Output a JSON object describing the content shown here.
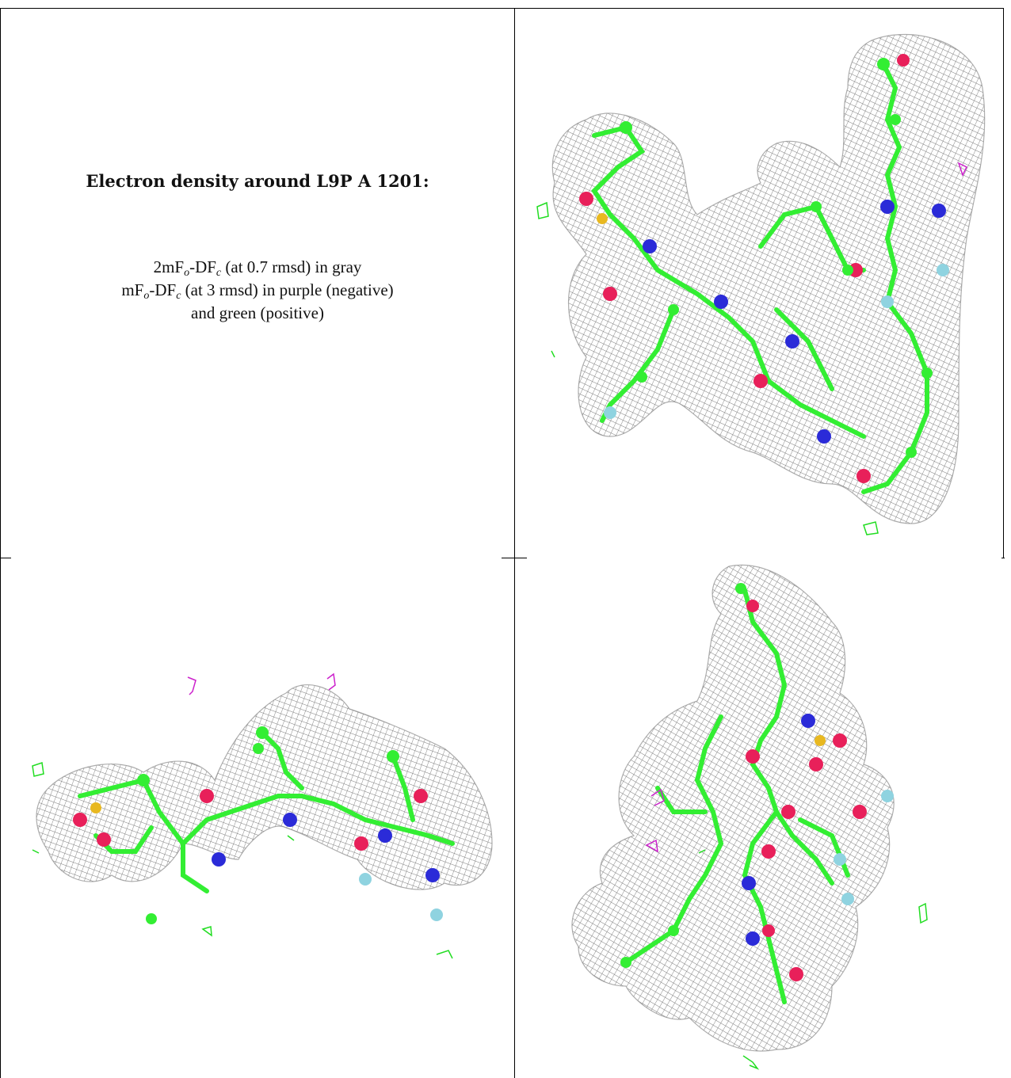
{
  "legend": {
    "title": "Electron density around L9P A 1201:",
    "line1_prefix": "2mF",
    "line1_sub1": "o",
    "line1_mid": "-DF",
    "line1_sub2": "c",
    "line1_suffix": " (at 0.7 rmsd) in gray",
    "line2_prefix": "mF",
    "line2_sub1": "o",
    "line2_mid": "-DF",
    "line2_sub2": "c",
    "line2_suffix": " (at 3 rmsd) in purple (negative)",
    "line3": "and green (positive)"
  },
  "colors": {
    "mesh": "#8a8a8a",
    "carbon": "#33ee33",
    "oxygen": "#e8205a",
    "nitrogen": "#2b2bd8",
    "sulfur": "#e8b820",
    "fluorine": "#8fd3e0",
    "difference_negative": "#cc22cc",
    "difference_positive": "#22dd22"
  }
}
